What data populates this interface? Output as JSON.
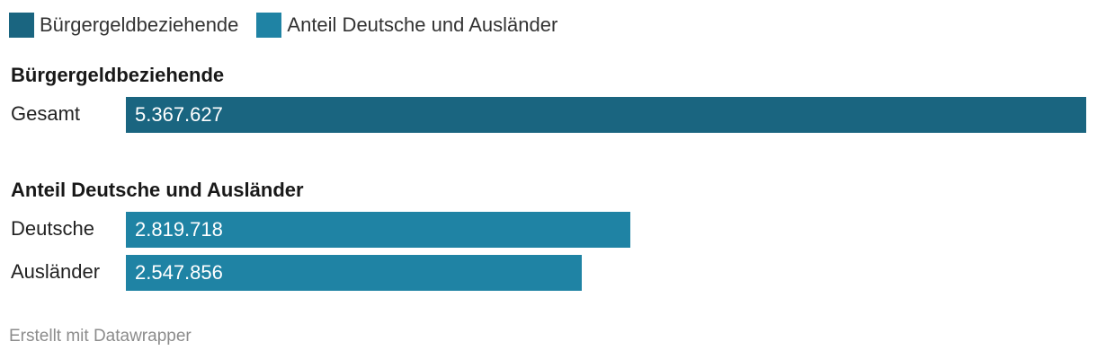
{
  "colors": {
    "buergergeld": "#1a6580",
    "anteil": "#1f83a4"
  },
  "legend": [
    {
      "label": "Bürgergeldbeziehende",
      "color": "#1a6580"
    },
    {
      "label": "Anteil Deutsche und Ausländer",
      "color": "#1f83a4"
    }
  ],
  "chart_data": {
    "type": "bar",
    "orientation": "horizontal",
    "groups": [
      {
        "title": "Bürgergeldbeziehende",
        "color": "#1a6580",
        "rows": [
          {
            "label": "Gesamt",
            "value": 5367627,
            "value_label": "5.367.627"
          }
        ]
      },
      {
        "title": "Anteil Deutsche und Ausländer",
        "color": "#1f83a4",
        "rows": [
          {
            "label": "Deutsche",
            "value": 2819718,
            "value_label": "2.819.718"
          },
          {
            "label": "Ausländer",
            "value": 2547856,
            "value_label": "2.547.856"
          }
        ]
      }
    ],
    "xlim": [
      0,
      5367627
    ],
    "grid": false,
    "legend_position": "top-left"
  },
  "footer": {
    "credit": "Erstellt mit Datawrapper"
  }
}
